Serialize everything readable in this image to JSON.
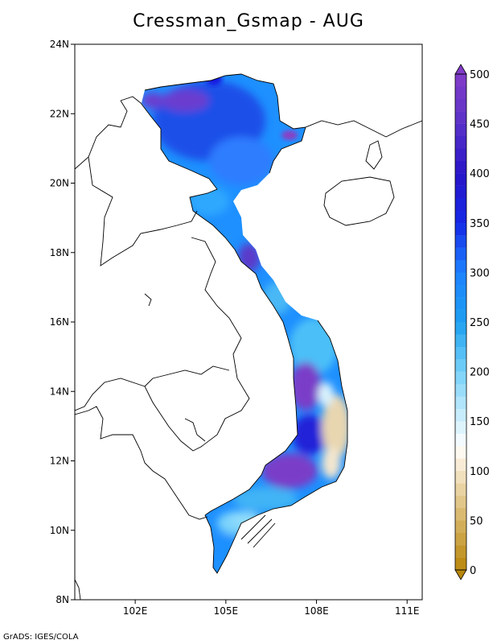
{
  "title": "Cressman_Gsmap - AUG",
  "footer": "GrADS: IGES/COLA",
  "map": {
    "lon_range": [
      100.0,
      111.5
    ],
    "lat_range": [
      8.0,
      24.0
    ],
    "lat_ticks": [
      {
        "value": 8,
        "label": "8N"
      },
      {
        "value": 10,
        "label": "10N"
      },
      {
        "value": 12,
        "label": "12N"
      },
      {
        "value": 14,
        "label": "14N"
      },
      {
        "value": 16,
        "label": "16N"
      },
      {
        "value": 18,
        "label": "18N"
      },
      {
        "value": 20,
        "label": "20N"
      },
      {
        "value": 22,
        "label": "22N"
      },
      {
        "value": 24,
        "label": "24N"
      }
    ],
    "lon_ticks": [
      {
        "value": 102,
        "label": "102E"
      },
      {
        "value": 105,
        "label": "105E"
      },
      {
        "value": 108,
        "label": "108E"
      },
      {
        "value": 111,
        "label": "111E"
      }
    ]
  },
  "colorbar": {
    "min": 0,
    "max": 500,
    "step": 12.5,
    "labels": [
      {
        "value": 0,
        "label": "0"
      },
      {
        "value": 50,
        "label": "50"
      },
      {
        "value": 100,
        "label": "100"
      },
      {
        "value": 150,
        "label": "150"
      },
      {
        "value": 200,
        "label": "200"
      },
      {
        "value": 250,
        "label": "250"
      },
      {
        "value": 300,
        "label": "300"
      },
      {
        "value": 350,
        "label": "350"
      },
      {
        "value": 400,
        "label": "400"
      },
      {
        "value": 450,
        "label": "450"
      },
      {
        "value": 500,
        "label": "500"
      }
    ],
    "colors": {
      "low": "#b8860b",
      "mid_low": "#f5e6c8",
      "white": "#ffffff",
      "light_blue": "#9fe3fa",
      "blue": "#1e90ff",
      "deep_blue": "#1515e0",
      "purple": "#7b3fc6"
    }
  }
}
